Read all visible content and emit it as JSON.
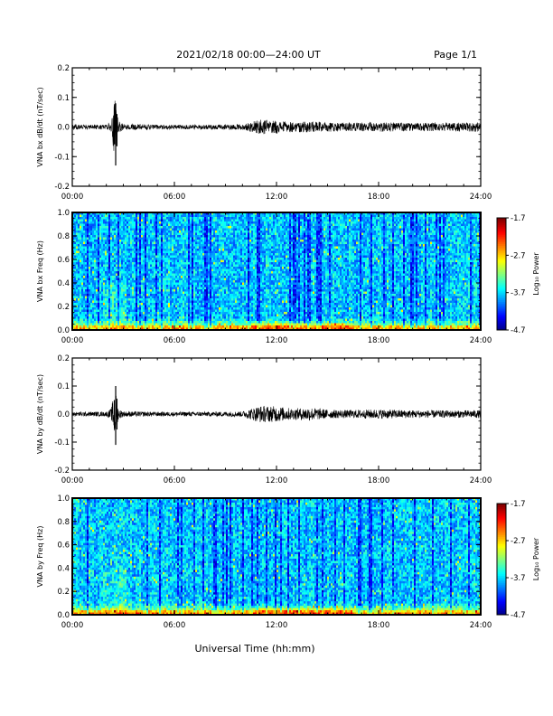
{
  "header": {
    "title": "2021/02/18  00:00—24:00 UT",
    "page": "Page 1/1"
  },
  "xlabel": "Universal Time (hh:mm)",
  "colorbar": {
    "label": "Log₁₀ Power",
    "ticks": [
      "-1.7",
      "-2.7",
      "-3.7",
      "-4.7"
    ],
    "range": [
      -4.7,
      -1.7
    ]
  },
  "chart_data": [
    {
      "type": "line",
      "ylabel": "VNA bx dB/dt (nT/sec)",
      "xlim": [
        0,
        24
      ],
      "ylim": [
        -0.2,
        0.2
      ],
      "yticks": [
        -0.2,
        -0.1,
        0.0,
        0.1,
        0.2
      ],
      "ytick_labels": [
        "-0.2",
        "-0.1",
        "0.0",
        "0.1",
        "0.2"
      ],
      "xtick_labels": [
        "00:00",
        "06:00",
        "12:00",
        "18:00",
        "24:00"
      ],
      "envelope": {
        "hours": [
          0,
          2,
          2.3,
          2.5,
          2.7,
          3,
          5,
          8,
          10,
          11,
          12,
          13,
          14,
          15,
          16,
          18,
          20,
          22,
          24
        ],
        "amplitude": [
          0.008,
          0.008,
          0.02,
          0.11,
          0.02,
          0.01,
          0.008,
          0.008,
          0.009,
          0.025,
          0.022,
          0.017,
          0.02,
          0.016,
          0.014,
          0.016,
          0.014,
          0.014,
          0.016
        ]
      },
      "spike": {
        "hour": 2.55,
        "max": 0.08,
        "min": -0.13
      }
    },
    {
      "type": "heatmap",
      "ylabel": "VNA bx Freq (Hz)",
      "xlim": [
        0,
        24
      ],
      "ylim": [
        0.0,
        1.0
      ],
      "yticks": [
        0.0,
        0.2,
        0.4,
        0.6,
        0.8,
        1.0
      ],
      "ytick_labels": [
        "0.0",
        "0.2",
        "0.4",
        "0.6",
        "0.8",
        "1.0"
      ],
      "xtick_labels": [
        "00:00",
        "06:00",
        "12:00",
        "18:00",
        "24:00"
      ],
      "zlim": [
        -4.7,
        -1.7
      ]
    },
    {
      "type": "line",
      "ylabel": "VNA by dB/dt (nT/sec)",
      "xlim": [
        0,
        24
      ],
      "ylim": [
        -0.2,
        0.2
      ],
      "yticks": [
        -0.2,
        -0.1,
        0.0,
        0.1,
        0.2
      ],
      "ytick_labels": [
        "-0.2",
        "-0.1",
        "0.0",
        "0.1",
        "0.2"
      ],
      "xtick_labels": [
        "00:00",
        "06:00",
        "12:00",
        "18:00",
        "24:00"
      ],
      "envelope": {
        "hours": [
          0,
          2,
          2.3,
          2.5,
          2.7,
          3,
          5,
          8,
          10,
          11,
          12,
          13,
          14,
          15,
          16,
          18,
          20,
          22,
          24
        ],
        "amplitude": [
          0.008,
          0.008,
          0.02,
          0.1,
          0.02,
          0.01,
          0.008,
          0.008,
          0.01,
          0.03,
          0.028,
          0.02,
          0.024,
          0.016,
          0.014,
          0.017,
          0.014,
          0.013,
          0.014
        ]
      },
      "spike": {
        "hour": 2.55,
        "max": 0.1,
        "min": -0.11
      }
    },
    {
      "type": "heatmap",
      "ylabel": "VNA by Freq (Hz)",
      "xlim": [
        0,
        24
      ],
      "ylim": [
        0.0,
        1.0
      ],
      "yticks": [
        0.0,
        0.2,
        0.4,
        0.6,
        0.8,
        1.0
      ],
      "ytick_labels": [
        "0.0",
        "0.2",
        "0.4",
        "0.6",
        "0.8",
        "1.0"
      ],
      "xtick_labels": [
        "00:00",
        "06:00",
        "12:00",
        "18:00",
        "24:00"
      ],
      "zlim": [
        -4.7,
        -1.7
      ]
    }
  ]
}
